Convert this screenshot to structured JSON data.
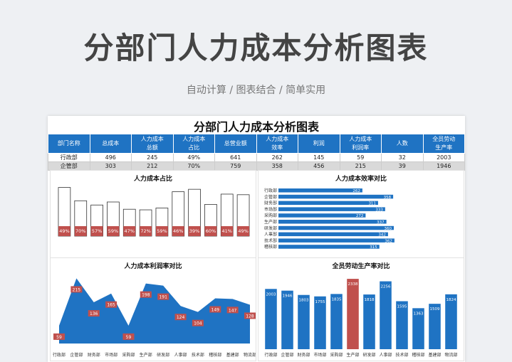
{
  "page": {
    "title": "分部门人力成本分析图表",
    "subtitle": "自动计算 / 图表结合 / 简单实用"
  },
  "sheet": {
    "title": "分部门人力成本分析图表",
    "headers": [
      "部门名称",
      "总成本",
      "人力成本\n总额",
      "人力成本\n占比",
      "总营业额",
      "人力成本\n效率",
      "利润",
      "人力成本\n利润率",
      "人数",
      "全员劳动\n生产率"
    ],
    "rows": [
      [
        "行政部",
        "496",
        "245",
        "49%",
        "641",
        "262",
        "145",
        "59",
        "32",
        "2003"
      ],
      [
        "企管部",
        "303",
        "212",
        "70%",
        "759",
        "358",
        "456",
        "215",
        "39",
        "1946"
      ]
    ]
  },
  "chart_data": [
    {
      "type": "bar",
      "title": "人力成本占比",
      "categories": [
        "行政部",
        "企管部",
        "财务部",
        "市场部",
        "采购部",
        "生产部",
        "研发部",
        "人事部",
        "技术部",
        "稽核部",
        "基建部",
        "物流部"
      ],
      "values": [
        49,
        70,
        57,
        59,
        47,
        72,
        59,
        46,
        39,
        60,
        41,
        49
      ],
      "data_labels": [
        "49%",
        "70%",
        "57%",
        "59%",
        "47%",
        "72%",
        "59%",
        "46%",
        "39%",
        "60%",
        "41%",
        "49%"
      ],
      "series_colors": [
        "#c0504d",
        "#ffffff"
      ]
    },
    {
      "type": "bar",
      "orientation": "horizontal",
      "title": "人力成本效率对比",
      "categories": [
        "行政部",
        "企管部",
        "财务部",
        "市场部",
        "采购部",
        "生产部",
        "研发部",
        "人事部",
        "技术部",
        "稽核部"
      ],
      "values": [
        262,
        358,
        311,
        333,
        272,
        337,
        360,
        342,
        362,
        315
      ],
      "color": "#1f73c3"
    },
    {
      "type": "area",
      "title": "人力成本利润率对比",
      "categories": [
        "行政部",
        "企管部",
        "财务部",
        "市场部",
        "采购部",
        "生产部",
        "研发部",
        "人事部",
        "技术部",
        "稽核部",
        "基建部",
        "物流部"
      ],
      "values": [
        59,
        215,
        136,
        165,
        59,
        198,
        191,
        124,
        104,
        149,
        147,
        128
      ],
      "color": "#1f73c3"
    },
    {
      "type": "bar",
      "title": "全员劳动生产率对比",
      "categories": [
        "行政部",
        "企管部",
        "财务部",
        "市场部",
        "采购部",
        "生产部",
        "研发部",
        "人事部",
        "技术部",
        "稽核部",
        "基建部",
        "物流部"
      ],
      "values": [
        2003,
        1946,
        1803,
        1755,
        1835,
        2338,
        1818,
        2256,
        1595,
        1363,
        1509,
        1824
      ],
      "color": "#1f73c3",
      "highlight_color": "#c0504d",
      "highlight_index": 5
    }
  ]
}
